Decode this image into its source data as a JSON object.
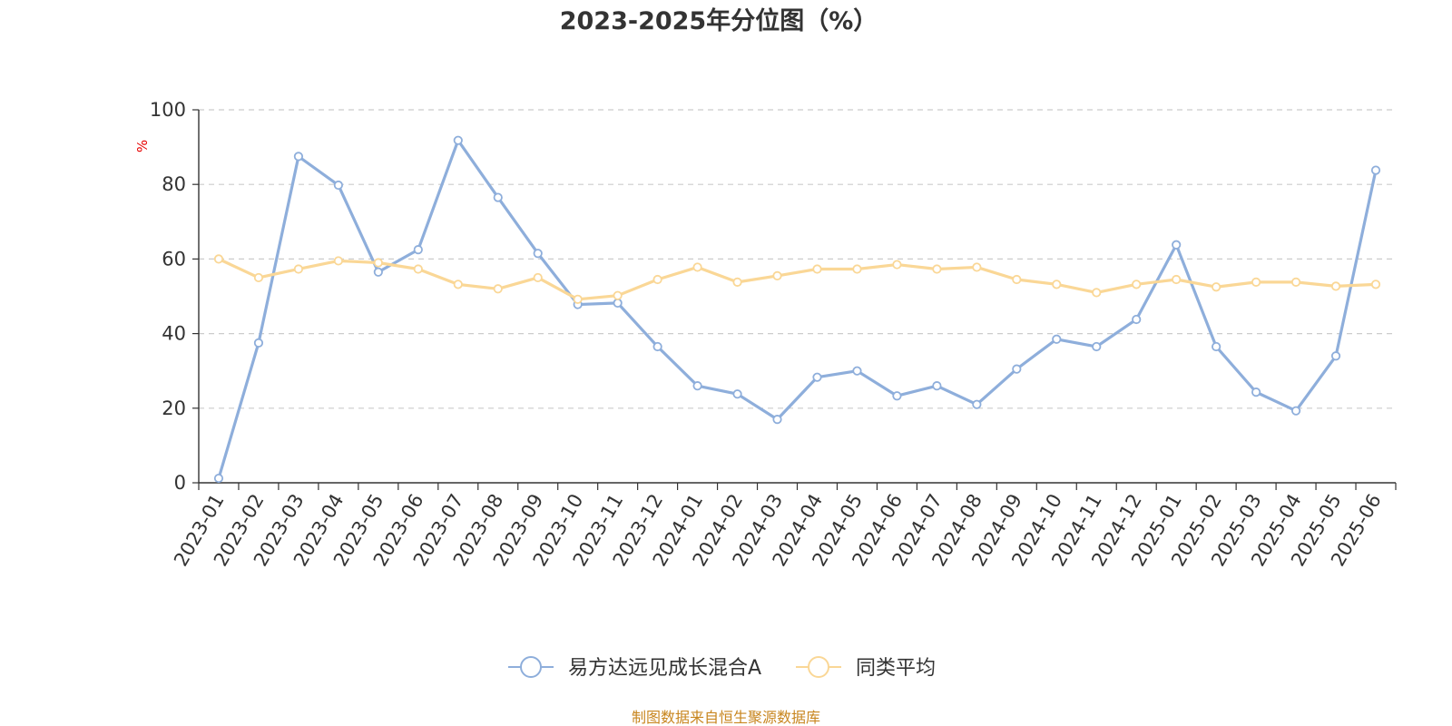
{
  "chart_data": {
    "type": "line",
    "title": "2023-2025年分位图（%）",
    "ylabel": "%",
    "xlabel": "",
    "ylim": [
      0,
      100
    ],
    "yticks": [
      0,
      20,
      40,
      60,
      80,
      100
    ],
    "grid": "horizontal dashed",
    "legend_position": "bottom",
    "categories": [
      "2023-01",
      "2023-02",
      "2023-03",
      "2023-04",
      "2023-05",
      "2023-06",
      "2023-07",
      "2023-08",
      "2023-09",
      "2023-10",
      "2023-11",
      "2023-12",
      "2024-01",
      "2024-02",
      "2024-03",
      "2024-04",
      "2024-05",
      "2024-06",
      "2024-07",
      "2024-08",
      "2024-09",
      "2024-10",
      "2024-11",
      "2024-12",
      "2025-01",
      "2025-02",
      "2025-03",
      "2025-04",
      "2025-05",
      "2025-06"
    ],
    "series": [
      {
        "name": "易方达远见成长混合A",
        "color": "#8eaedb",
        "values": [
          1.2,
          37.5,
          87.5,
          79.8,
          56.5,
          62.5,
          91.8,
          76.5,
          61.5,
          47.8,
          48.2,
          36.5,
          26.0,
          23.8,
          17.0,
          28.3,
          30.0,
          23.3,
          26.0,
          21.0,
          30.5,
          38.5,
          36.5,
          43.8,
          63.8,
          36.5,
          24.3,
          19.3,
          34.0,
          83.8
        ]
      },
      {
        "name": "同类平均",
        "color": "#fad796",
        "values": [
          60.0,
          55.0,
          57.3,
          59.5,
          59.0,
          57.3,
          53.2,
          52.0,
          55.0,
          49.2,
          50.2,
          54.5,
          57.8,
          53.8,
          55.5,
          57.3,
          57.3,
          58.5,
          57.3,
          57.8,
          54.5,
          53.2,
          51.0,
          53.2,
          54.5,
          52.5,
          53.8,
          53.8,
          52.7,
          53.2
        ]
      }
    ],
    "source": "制图数据来自恒生聚源数据库"
  }
}
